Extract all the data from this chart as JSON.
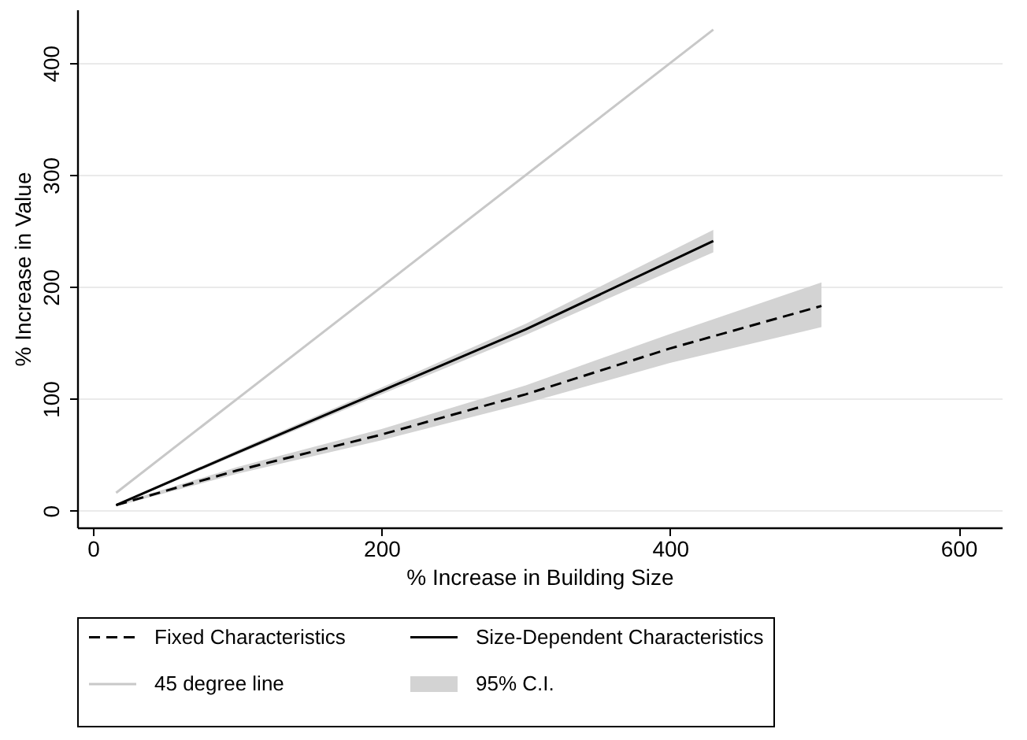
{
  "chart_data": {
    "type": "line",
    "xlabel": "% Increase in Building Size",
    "ylabel": "% Increase in Value",
    "xlim": [
      -11,
      630
    ],
    "ylim": [
      -15,
      448
    ],
    "xticks": [
      0,
      200,
      400,
      600
    ],
    "yticks": [
      0,
      100,
      200,
      300,
      400
    ],
    "grid": "y",
    "legend": "bottom",
    "annotations": [
      "95% C.I."
    ],
    "series": [
      {
        "name": "Fixed Characteristics",
        "color": "#000000",
        "line_style": "dashed",
        "x": [
          16,
          100,
          200,
          300,
          400,
          505
        ],
        "values": [
          5,
          36,
          68,
          104,
          145,
          183
        ],
        "lower": [
          4,
          33,
          63,
          96,
          132,
          164
        ],
        "upper": [
          6,
          39,
          73,
          112,
          158,
          204
        ]
      },
      {
        "name": "Size-Dependent Characteristics",
        "color": "#000000",
        "line_style": "solid",
        "x": [
          16,
          100,
          200,
          300,
          430
        ],
        "values": [
          5,
          52,
          107,
          162,
          241
        ],
        "lower": [
          4,
          50,
          104,
          157,
          231
        ],
        "upper": [
          6,
          54,
          110,
          167,
          251
        ]
      },
      {
        "name": "45 degree line",
        "color": "#c8c8c8",
        "line_style": "solid",
        "x": [
          16,
          430
        ],
        "values": [
          16,
          430
        ]
      }
    ]
  }
}
